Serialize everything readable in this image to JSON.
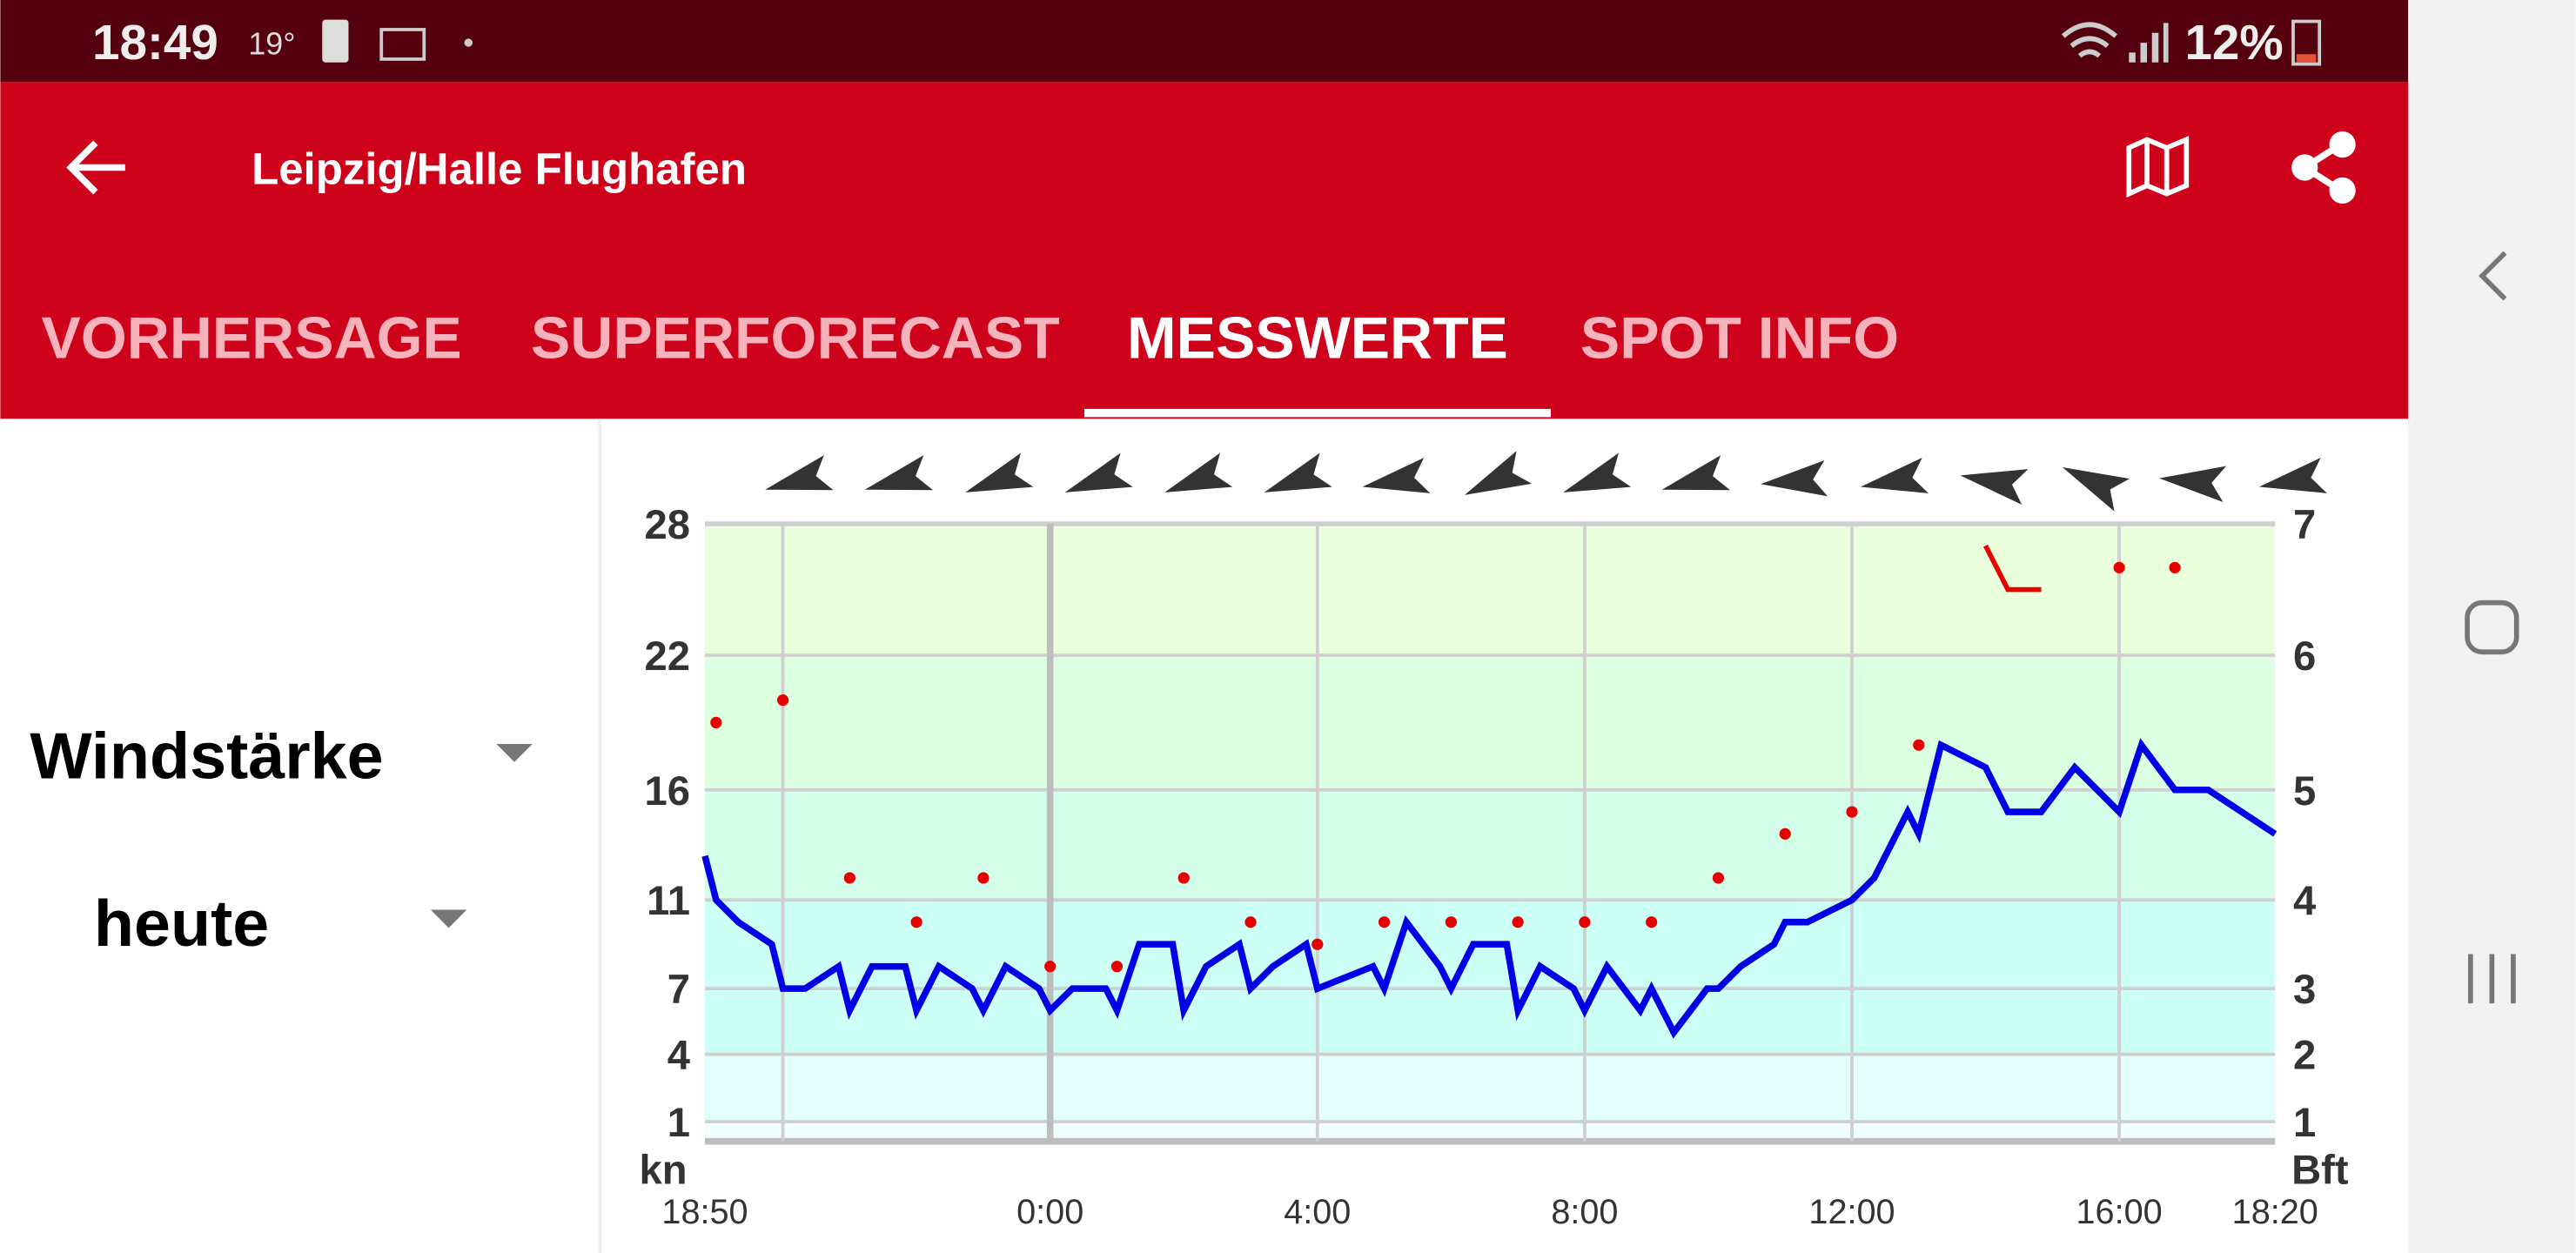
{
  "status_bar": {
    "time": "18:49",
    "temperature": "19°",
    "battery": "12%"
  },
  "app_bar": {
    "title": "Leipzig/Halle Flughafen"
  },
  "tabs": [
    "VORHERSAGE",
    "SUPERFORECAST",
    "MESSWERTE",
    "SPOT INFO"
  ],
  "active_tab": 2,
  "controls": {
    "measure": "Windstärke",
    "period": "heute"
  },
  "chart_data": {
    "type": "line",
    "y_unit": "kn",
    "y2_unit": "Bft",
    "x": [
      "18:50",
      "19:00",
      "19:20",
      "19:50",
      "20:00",
      "20:20",
      "20:50",
      "21:00",
      "21:20",
      "21:50",
      "22:00",
      "22:20",
      "22:50",
      "23:00",
      "23:20",
      "23:50",
      "0:00",
      "0:20",
      "0:50",
      "1:00",
      "1:20",
      "1:50",
      "2:00",
      "2:20",
      "2:50",
      "3:00",
      "3:20",
      "3:50",
      "4:00",
      "4:50",
      "5:00",
      "5:20",
      "5:50",
      "6:00",
      "6:20",
      "6:50",
      "7:00",
      "7:20",
      "7:50",
      "8:00",
      "8:20",
      "8:50",
      "9:00",
      "9:20",
      "9:50",
      "10:00",
      "10:20",
      "10:50",
      "11:00",
      "11:20",
      "12:00",
      "12:20",
      "12:50",
      "13:00",
      "13:20",
      "14:00",
      "14:20",
      "14:50",
      "15:20",
      "16:00",
      "16:20",
      "16:50",
      "17:20",
      "18:20"
    ],
    "series": [
      {
        "color": "#0000e6",
        "values": [
          13,
          11,
          10,
          9,
          7,
          7,
          8,
          6,
          8,
          8,
          6,
          8,
          7,
          6,
          8,
          7,
          6,
          7,
          7,
          6,
          9,
          9,
          6,
          8,
          9,
          7,
          8,
          9,
          7,
          8,
          7,
          10,
          8,
          7,
          9,
          9,
          6,
          8,
          7,
          6,
          8,
          6,
          7,
          5,
          7,
          7,
          8,
          9,
          10,
          10,
          11,
          12,
          15,
          14,
          18,
          17,
          15,
          15,
          17,
          15,
          18,
          16,
          16,
          14
        ]
      },
      {
        "color": "#e60000",
        "values": [
          null,
          19,
          null,
          null,
          20,
          null,
          null,
          12,
          null,
          null,
          10,
          null,
          null,
          12,
          null,
          null,
          8,
          null,
          null,
          8,
          null,
          null,
          12,
          null,
          null,
          10,
          null,
          null,
          9,
          null,
          10,
          null,
          null,
          10,
          null,
          null,
          10,
          null,
          null,
          10,
          null,
          null,
          10,
          null,
          null,
          12,
          null,
          null,
          14,
          null,
          15,
          null,
          null,
          18,
          null,
          27,
          25,
          25,
          null,
          26,
          null,
          26,
          null,
          null
        ]
      }
    ],
    "wind_direction": [
      75,
      75,
      70,
      70,
      70,
      70,
      80,
      65,
      70,
      75,
      85,
      80,
      100,
      115,
      95,
      80
    ],
    "xlim": [
      "18:50",
      "18:20"
    ],
    "xticks": [
      "18:50",
      "0:00",
      "4:00",
      "8:00",
      "12:00",
      "16:00",
      "18:20"
    ],
    "ylim": [
      0,
      28
    ],
    "yticks": [
      1,
      4,
      7,
      11,
      16,
      22,
      28
    ],
    "y2lim": [
      0,
      7
    ],
    "y2ticks": [
      1,
      2,
      3,
      4,
      5,
      6,
      7
    ],
    "grid": true
  }
}
